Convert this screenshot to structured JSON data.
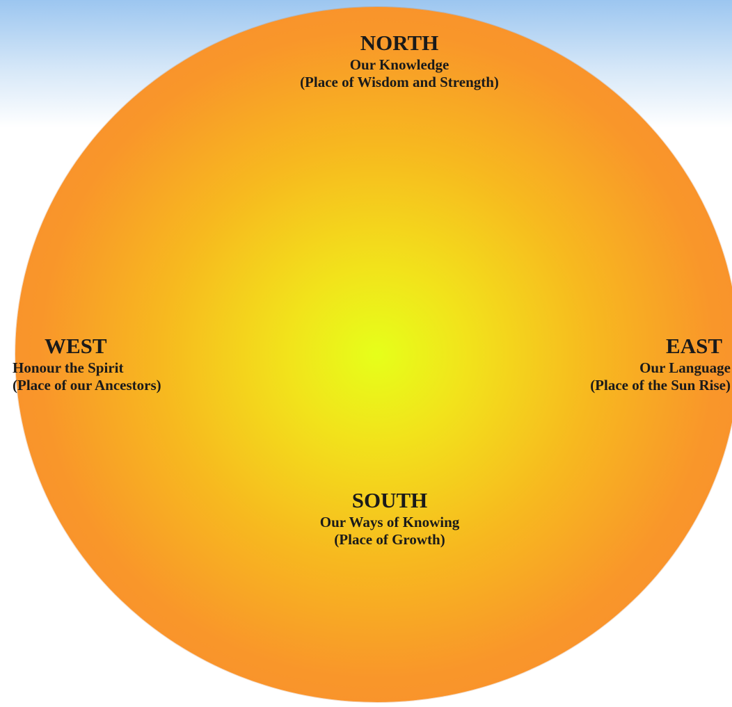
{
  "directions": {
    "north": {
      "title": "NORTH",
      "line1": "Our Knowledge",
      "line2": "(Place of Wisdom and Strength)"
    },
    "west": {
      "title": "WEST",
      "line1": "Honour the Spirit",
      "line2": "(Place of our Ancestors)"
    },
    "east": {
      "title": "EAST",
      "line1": "Our Language",
      "line2": "(Place of the Sun Rise)"
    },
    "south": {
      "title": "SOUTH",
      "line1": "Our Ways of Knowing",
      "line2": "(Place of Growth)"
    }
  },
  "colors": {
    "center": "#e6ff1a",
    "edge": "#fb8a34",
    "sky": "#9cc6f0"
  }
}
